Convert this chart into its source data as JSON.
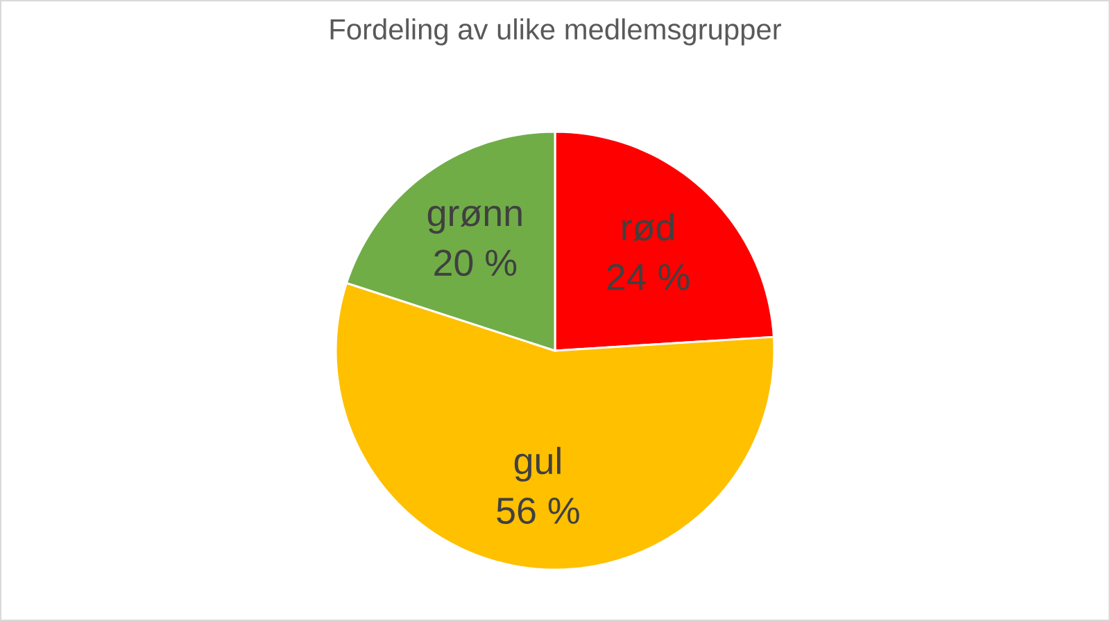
{
  "chart_data": {
    "type": "pie",
    "title": "Fordeling av ulike medlemsgrupper",
    "categories": [
      "rød",
      "gul",
      "grønn"
    ],
    "values": [
      24,
      56,
      20
    ],
    "value_labels": [
      "24 %",
      "56 %",
      "20 %"
    ],
    "colors": [
      "#ff0000",
      "#ffc000",
      "#70ad47"
    ]
  }
}
